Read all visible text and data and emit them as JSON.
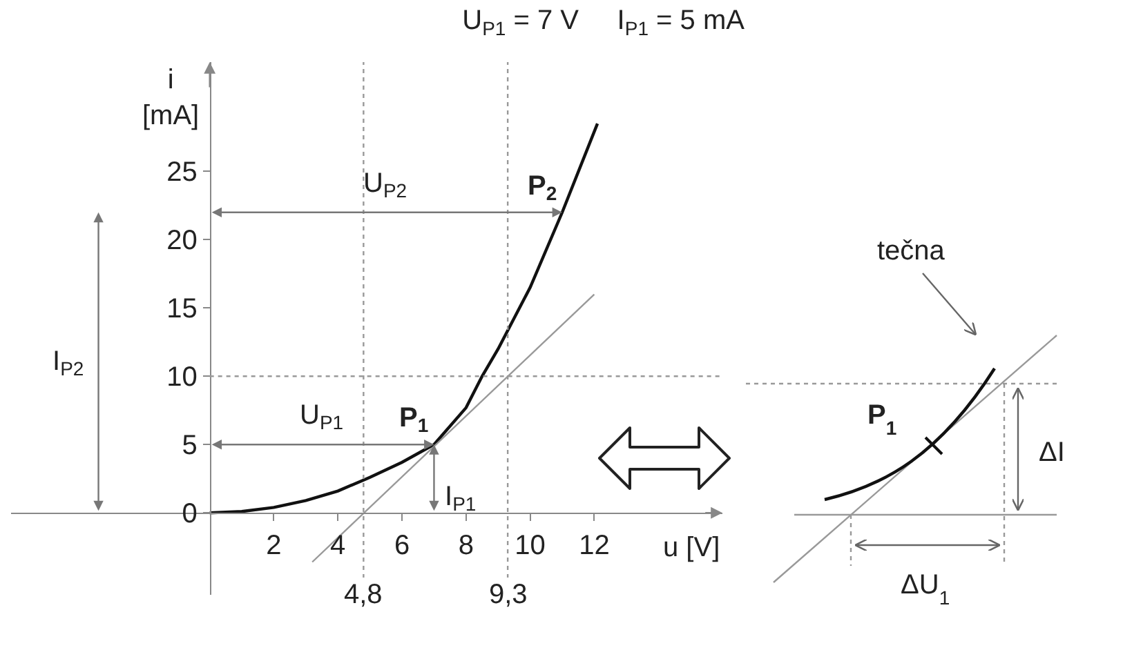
{
  "chart_data": [
    {
      "type": "line",
      "title": "U$_{P1}$ = 7 V     I$_{P1}$ = 5 mA",
      "xlabel": "u [V]",
      "ylabel": "i\n[mA]",
      "series": [
        {
          "color": "#111111",
          "x": [
            0,
            1,
            2,
            3,
            4,
            5,
            6,
            7,
            8,
            8.5,
            9,
            10,
            11,
            12.1
          ],
          "values": [
            0,
            0.1,
            0.4,
            0.9,
            1.6,
            2.6,
            3.7,
            5,
            7.7,
            10,
            12,
            16.5,
            22,
            28.5
          ]
        },
        {
          "color": "#999999",
          "x": [
            3.2,
            12
          ],
          "values": [
            -3.6,
            16
          ]
        }
      ],
      "xlim": [
        -6.2,
        16
      ],
      "ylim": [
        -6,
        33
      ],
      "xticks": [
        2,
        4,
        6,
        8,
        10,
        12
      ],
      "yticks": [
        0,
        5,
        10,
        15,
        20,
        25
      ],
      "ref_lines": [
        {
          "axis": "y",
          "value": 10,
          "line_style": "dotted",
          "color": "#999999"
        },
        {
          "axis": "x",
          "value": 4.8,
          "label": "4,8",
          "line_style": "dotted",
          "color": "#999999"
        },
        {
          "axis": "x",
          "value": 9.3,
          "label": "9,3",
          "line_style": "dotted",
          "color": "#999999"
        }
      ],
      "annotations": [
        {
          "text": "P$_{1}$",
          "x": 7,
          "y": 5
        },
        {
          "text": "P$_{2}$",
          "x": 11,
          "y": 22
        },
        "U$_{P1}$",
        "I$_{P1}$",
        "U$_{P2}$",
        "I$_{P2}$"
      ]
    },
    {
      "type": "other",
      "annotations": [
        "P$_{1}$",
        "tečna",
        "ΔI",
        "ΔU$_{1}$"
      ]
    }
  ]
}
